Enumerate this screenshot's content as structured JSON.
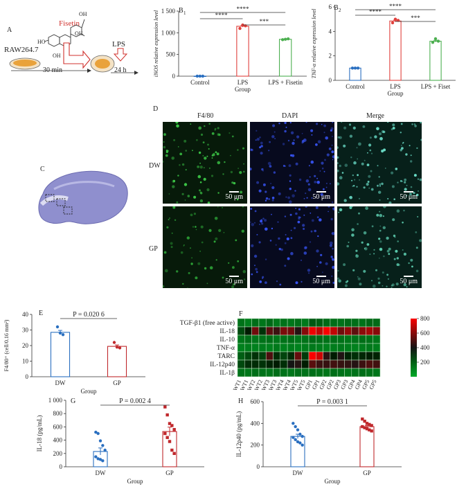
{
  "panel_letters": {
    "A": "A",
    "B1": "B",
    "B1_sub": "1",
    "B2": "B",
    "B2_sub": "2",
    "C": "C",
    "D": "D",
    "E": "E",
    "F": "F",
    "G": "G",
    "H": "H"
  },
  "schematic": {
    "drug": "Fisetin",
    "cell_line": "RAW264.7",
    "time1": "30 min",
    "stimulus": "LPS",
    "time2": "24 h",
    "oh1": "HO",
    "oh2": "OH",
    "oh3": "OH",
    "oh4": "OH"
  },
  "panel_d": {
    "col_labels": [
      "F4/80",
      "DAPI",
      "Merge"
    ],
    "row_labels": [
      "DW",
      "GP"
    ],
    "scale": "50 μm"
  },
  "chart_data": [
    {
      "id": "B1",
      "type": "bar",
      "ylabel": "iNOS relative expression level",
      "xlabel": "Group",
      "categories": [
        "Control",
        "LPS",
        "LPS + Fisetin"
      ],
      "values": [
        1,
        1150,
        850
      ],
      "points": [
        [
          1,
          1,
          1
        ],
        [
          1100,
          1180,
          1160
        ],
        [
          840,
          850,
          860
        ]
      ],
      "colors": [
        "#2a6fc0",
        "#e0403c",
        "#4caf50"
      ],
      "ylim": [
        0,
        1500
      ],
      "yticks": [
        0,
        500,
        1000,
        1500
      ],
      "ytick_labels": [
        "0",
        "500",
        "1 000",
        "1 500"
      ],
      "significance": [
        {
          "from": 0,
          "to": 2,
          "label": "****"
        },
        {
          "from": 0,
          "to": 1,
          "label": "****"
        },
        {
          "from": 1,
          "to": 2,
          "label": "***"
        }
      ]
    },
    {
      "id": "B2",
      "type": "bar",
      "ylabel": "TNF-α relative expression level",
      "xlabel": "Group",
      "categories": [
        "Control",
        "LPS",
        "LPS + Fiset"
      ],
      "values": [
        1,
        4.85,
        3.2
      ],
      "points": [
        [
          1,
          1,
          1
        ],
        [
          4.7,
          5.0,
          4.9
        ],
        [
          3.1,
          3.4,
          3.2
        ]
      ],
      "colors": [
        "#2a6fc0",
        "#e0403c",
        "#4caf50"
      ],
      "ylim": [
        0,
        6
      ],
      "yticks": [
        0,
        2,
        4,
        6
      ],
      "ytick_labels": [
        "0",
        "2",
        "4",
        "6"
      ],
      "significance": [
        {
          "from": 0,
          "to": 2,
          "label": "****"
        },
        {
          "from": 0,
          "to": 1,
          "label": "****"
        },
        {
          "from": 1,
          "to": 2,
          "label": "***"
        }
      ]
    },
    {
      "id": "E",
      "type": "bar",
      "ylabel": "F4/80⁺ (cell/0.16 mm²)",
      "xlabel": "Group",
      "categories": [
        "DW",
        "GP"
      ],
      "values": [
        28.5,
        19.5
      ],
      "points": [
        [
          32,
          28,
          27
        ],
        [
          22,
          19,
          18.5
        ]
      ],
      "colors": [
        "#2a6fc0",
        "#c0282c"
      ],
      "ylim": [
        0,
        40
      ],
      "yticks": [
        0,
        10,
        20,
        30,
        40
      ],
      "ytick_labels": [
        "0",
        "10",
        "20",
        "30",
        "40"
      ],
      "annotation": "P = 0.020 6"
    },
    {
      "id": "F",
      "type": "heatmap",
      "rows": [
        "TGF-β1 (free active)",
        "IL-18",
        "IL-10",
        "TNF-α",
        "TARC",
        "IL-12p40",
        "IL-1β"
      ],
      "columns": [
        "WT1",
        "WT1",
        "WT2",
        "WT2",
        "WT3",
        "WT3",
        "WT4",
        "WT4",
        "WT5",
        "WT5",
        "GP1",
        "GP1",
        "GP2",
        "GP2",
        "GP3",
        "GP3",
        "GP4",
        "GP4",
        "GP5",
        "GP5"
      ],
      "values": [
        [
          150,
          120,
          160,
          140,
          170,
          130,
          150,
          140,
          160,
          130,
          220,
          200,
          170,
          160,
          150,
          170,
          160,
          150,
          180,
          170
        ],
        [
          260,
          380,
          560,
          320,
          520,
          470,
          580,
          560,
          430,
          600,
          780,
          700,
          820,
          700,
          560,
          620,
          530,
          610,
          650,
          600
        ],
        [
          140,
          160,
          140,
          150,
          160,
          140,
          150,
          160,
          140,
          150,
          170,
          160,
          150,
          160,
          150,
          140,
          150,
          160,
          150,
          140
        ],
        [
          110,
          120,
          110,
          120,
          110,
          130,
          110,
          120,
          110,
          120,
          130,
          120,
          110,
          120,
          130,
          120,
          110,
          120,
          130,
          120
        ],
        [
          200,
          260,
          320,
          280,
          500,
          330,
          270,
          340,
          540,
          300,
          820,
          720,
          440,
          380,
          420,
          360,
          330,
          350,
          370,
          360
        ],
        [
          260,
          330,
          340,
          320,
          360,
          380,
          330,
          400,
          430,
          380,
          520,
          470,
          460,
          480,
          460,
          450,
          430,
          470,
          500,
          480
        ],
        [
          150,
          140,
          160,
          150,
          140,
          160,
          150,
          140,
          160,
          150,
          160,
          150,
          140,
          160,
          150,
          140,
          150,
          160,
          150,
          140
        ]
      ],
      "scale_max": 800,
      "legend_ticks": [
        800,
        600,
        400,
        200
      ],
      "colormap": "green-black-red"
    },
    {
      "id": "G",
      "type": "bar",
      "ylabel": "IL-18 (pg/mL)",
      "xlabel": "Group",
      "categories": [
        "DW",
        "GP"
      ],
      "values": [
        230,
        530
      ],
      "points": [
        [
          520,
          500,
          390,
          320,
          250,
          150,
          120,
          110,
          90
        ],
        [
          900,
          780,
          650,
          620,
          560,
          500,
          440,
          380,
          250,
          200
        ]
      ],
      "colors": [
        "#2a6fc0",
        "#c0282c"
      ],
      "ylim": [
        0,
        1000
      ],
      "yticks": [
        0,
        200,
        400,
        600,
        800,
        1000
      ],
      "ytick_labels": [
        "0",
        "200",
        "400",
        "600",
        "800",
        "1 000"
      ],
      "annotation": "P = 0.002 4"
    },
    {
      "id": "H",
      "type": "bar",
      "ylabel": "IL-12p40 (pg/mL)",
      "xlabel": "Group",
      "categories": [
        "DW",
        "GP"
      ],
      "values": [
        280,
        370
      ],
      "points": [
        [
          400,
          370,
          340,
          300,
          280,
          270,
          250,
          230,
          220,
          200
        ],
        [
          440,
          420,
          400,
          390,
          380,
          370,
          360,
          350,
          340,
          330
        ]
      ],
      "colors": [
        "#2a6fc0",
        "#c0282c"
      ],
      "ylim": [
        0,
        600
      ],
      "yticks": [
        0,
        200,
        400,
        600
      ],
      "ytick_labels": [
        "0",
        "200",
        "400",
        "600"
      ],
      "annotation": "P = 0.003 1"
    }
  ]
}
